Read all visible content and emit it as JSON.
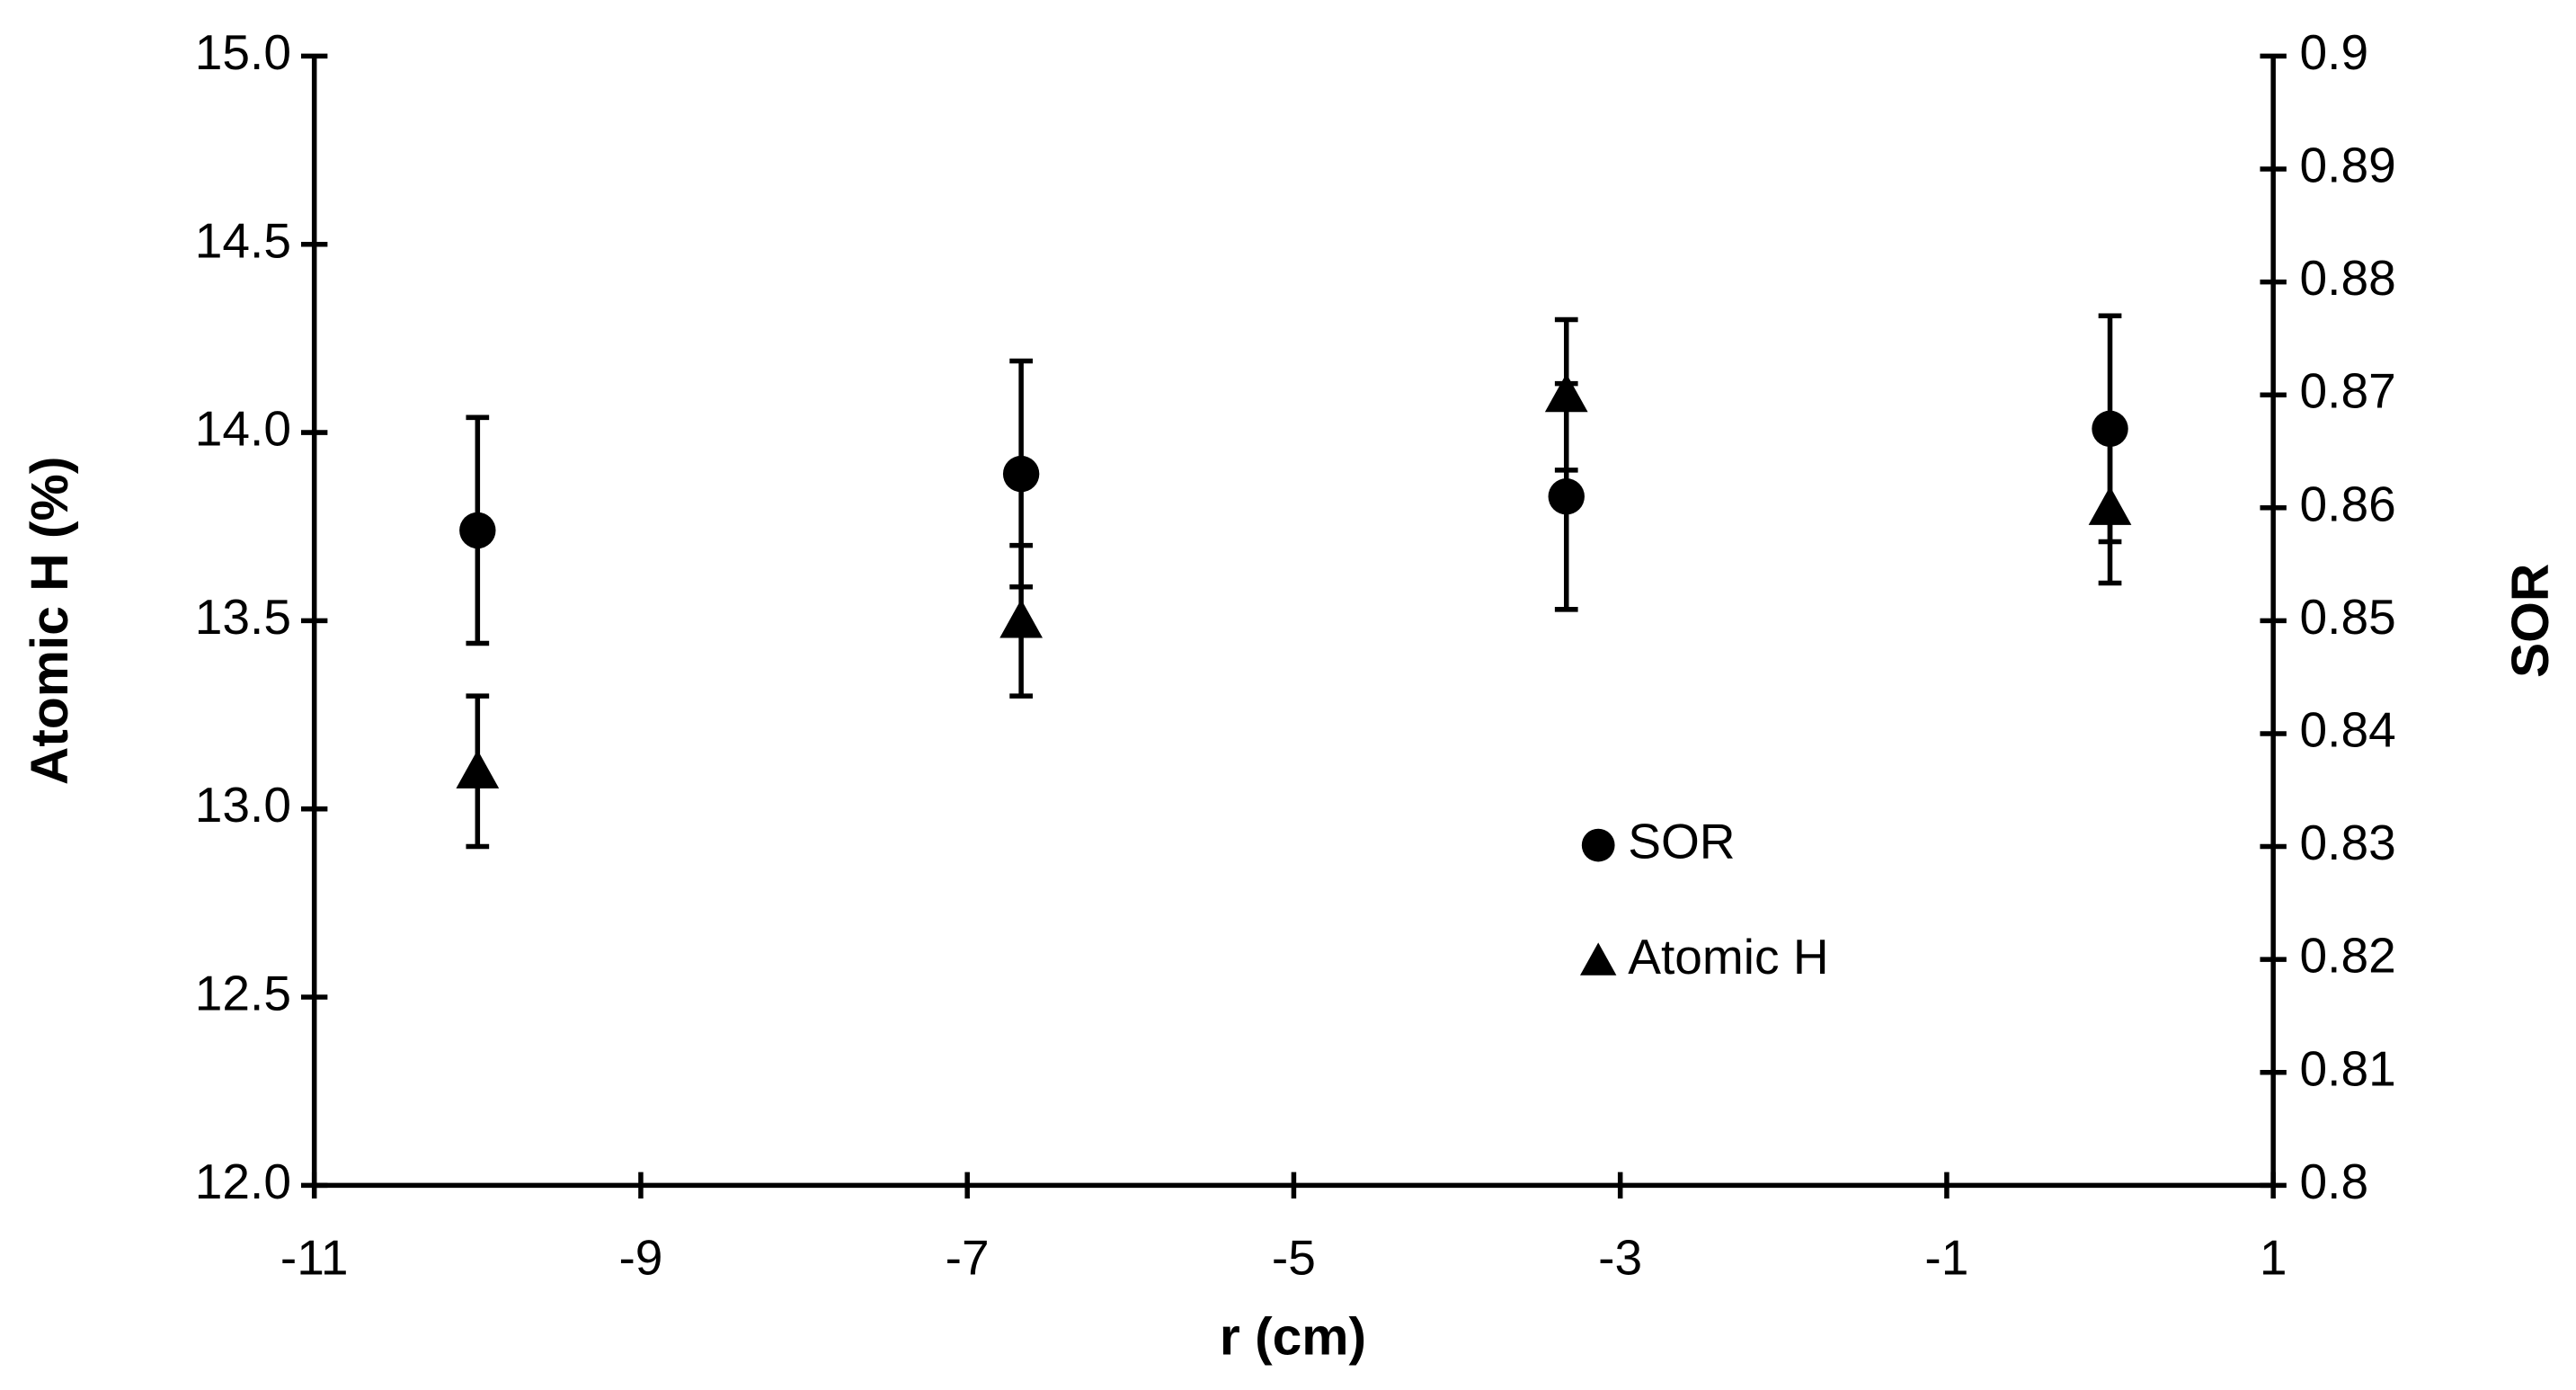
{
  "chart_data": {
    "type": "scatter",
    "xlabel": "r (cm)",
    "ylabel": "Atomic H (%)",
    "y2label": "SOR",
    "x": [
      -10,
      -6.67,
      -3.33,
      0
    ],
    "xlim": [
      -11,
      1
    ],
    "xticks": [
      -11,
      -9,
      -7,
      -5,
      -3,
      -1,
      1
    ],
    "ylim": [
      12,
      15
    ],
    "yticks": [
      {
        "value": 12,
        "label": "12.0"
      },
      {
        "value": 12.5,
        "label": "12.5"
      },
      {
        "value": 13,
        "label": "13.0"
      },
      {
        "value": 13.5,
        "label": "13.5"
      },
      {
        "value": 14,
        "label": "14.0"
      },
      {
        "value": 14.5,
        "label": "14.5"
      },
      {
        "value": 15,
        "label": "15.0"
      }
    ],
    "y2lim": [
      0.8,
      0.9
    ],
    "y2ticks": [
      0.8,
      0.81,
      0.82,
      0.83,
      0.84,
      0.85,
      0.86,
      0.87,
      0.88,
      0.89,
      0.9
    ],
    "legend_position": "center right",
    "series": [
      {
        "name": "SOR",
        "axis": "y2",
        "marker": "circle",
        "color": "#000000",
        "values": [
          0.858,
          0.863,
          0.861,
          0.867
        ],
        "errors": [
          0.01,
          0.01,
          0.01,
          0.01
        ]
      },
      {
        "name": "Atomic H",
        "axis": "y",
        "marker": "triangle",
        "color": "#000000",
        "values": [
          13.1,
          13.5,
          14.1,
          13.8
        ],
        "errors": [
          0.2,
          0.2,
          0.2,
          0.2
        ]
      }
    ]
  }
}
